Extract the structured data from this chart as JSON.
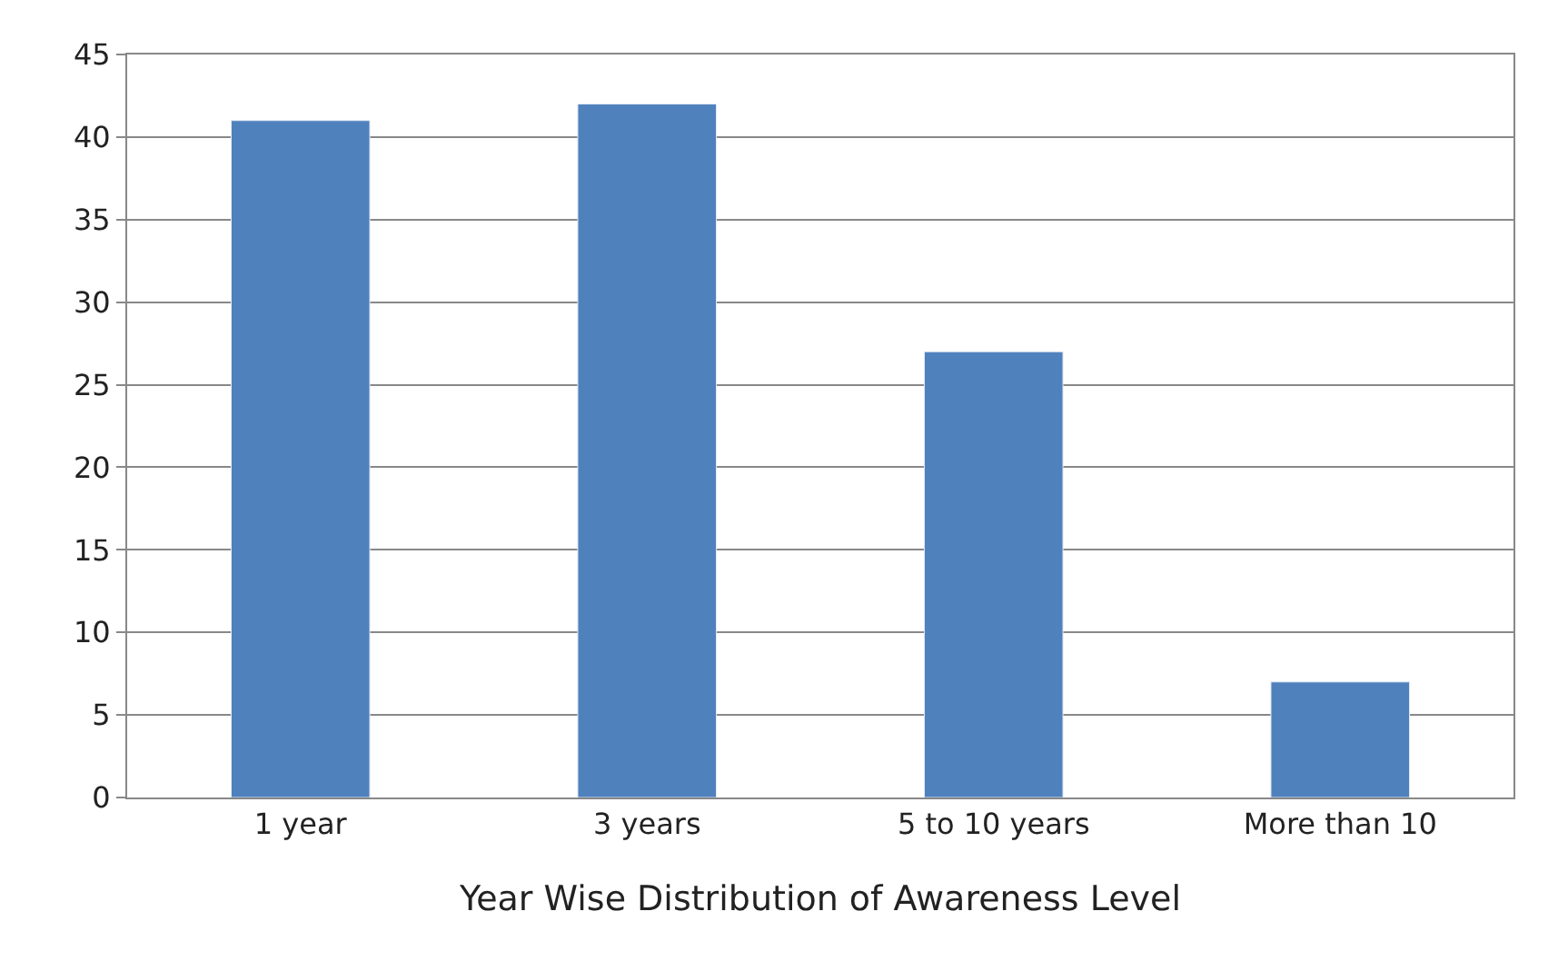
{
  "chart_data": {
    "type": "bar",
    "xlabel": "Year Wise Distribution of Awareness Level",
    "categories": [
      "1 year",
      "3 years",
      "5 to 10 years",
      "More than 10"
    ],
    "values": [
      41,
      42,
      27,
      7
    ],
    "color": "#4f81bd",
    "ylim": [
      0,
      45
    ],
    "yticks": [
      0,
      5,
      10,
      15,
      20,
      25,
      30,
      35,
      40,
      45
    ],
    "grid": "y"
  }
}
